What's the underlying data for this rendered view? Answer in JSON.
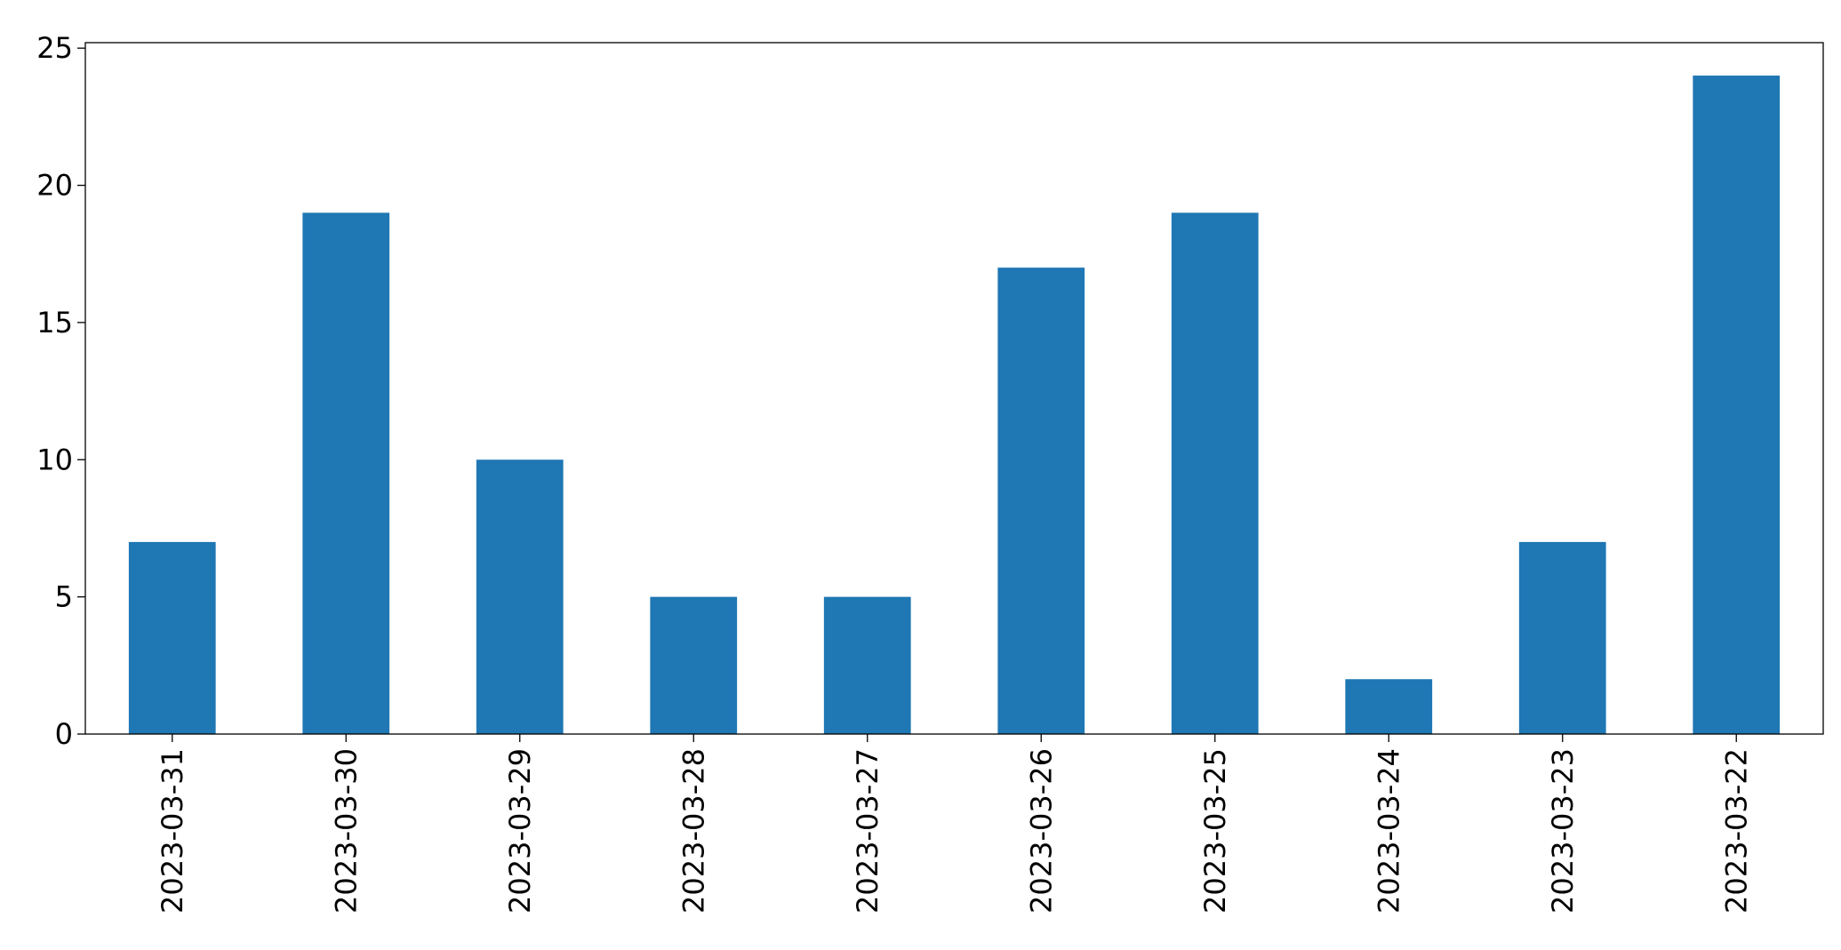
{
  "chart_data": {
    "type": "bar",
    "categories": [
      "2023-03-31",
      "2023-03-30",
      "2023-03-29",
      "2023-03-28",
      "2023-03-27",
      "2023-03-26",
      "2023-03-25",
      "2023-03-24",
      "2023-03-23",
      "2023-03-22"
    ],
    "values": [
      7,
      19,
      10,
      5,
      5,
      17,
      19,
      2,
      7,
      24
    ],
    "color": "#1f77b4",
    "ylim": [
      0,
      25.2
    ],
    "yticks": [
      0,
      5,
      10,
      15,
      20,
      25
    ],
    "grid": false
  }
}
